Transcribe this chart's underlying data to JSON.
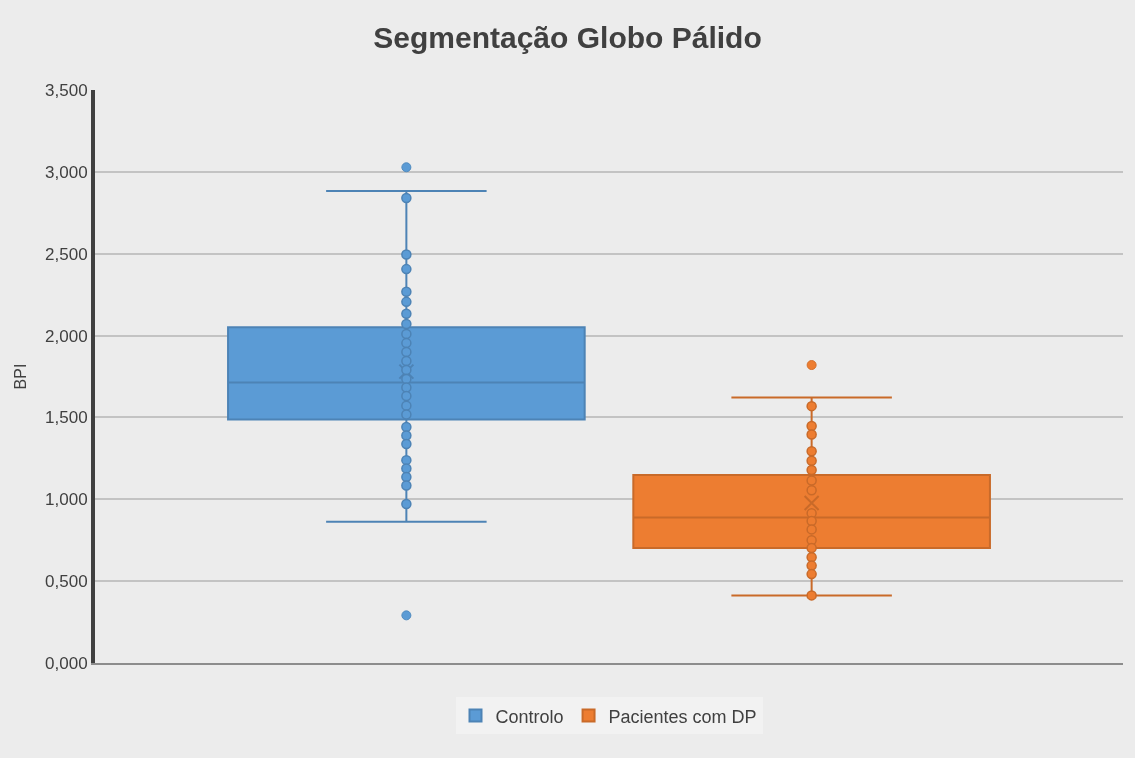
{
  "chart_data": {
    "type": "box",
    "title": "Segmentação Globo Pálido",
    "ylabel": "BPI",
    "categories": [
      null
    ],
    "series": [
      {
        "name": "Controlo",
        "color": "#5b9bd5",
        "boxes": [
          {
            "low": 0.863,
            "q1": 1.487,
            "median": 1.714,
            "q3": 2.051,
            "high": 2.883,
            "mean": 1.78,
            "outliers": [
              3.028,
              0.291
            ]
          }
        ]
      },
      {
        "name": "Pacientes com DP",
        "color": "#ed7d31",
        "boxes": [
          {
            "low": 0.413,
            "q1": 0.702,
            "median": 0.888,
            "q3": 1.148,
            "high": 1.621,
            "mean": 0.977,
            "outliers": [
              1.82
            ]
          }
        ]
      },
      {
        "type": "scatter",
        "color": "#5b9bd5",
        "x": [
          null,
          null,
          null,
          null,
          null,
          null,
          null,
          null,
          null,
          null,
          null,
          null,
          null,
          null,
          null,
          null,
          null,
          null,
          null,
          null,
          null,
          null,
          null,
          null,
          null
        ],
        "values": [
          2.84,
          2.495,
          2.406,
          2.268,
          2.206,
          2.133,
          2.071,
          2.01,
          1.954,
          1.9,
          1.845,
          1.79,
          1.735,
          1.683,
          1.631,
          1.572,
          1.518,
          1.442,
          1.39,
          1.338,
          1.239,
          1.188,
          1.136,
          1.084,
          0.971
        ]
      },
      {
        "type": "scatter",
        "color": "#ed7d31",
        "x": [
          null,
          null,
          null,
          null,
          null,
          null,
          null,
          null,
          null,
          null,
          null,
          null,
          null,
          null,
          null,
          null,
          null
        ],
        "values": [
          1.569,
          1.448,
          1.396,
          1.293,
          1.235,
          1.179,
          1.115,
          1.055,
          0.915,
          0.867,
          0.816,
          0.75,
          0.702,
          0.646,
          0.595,
          0.543,
          0.413
        ]
      }
    ],
    "ylim": [
      0,
      3.5
    ],
    "yticks": [
      {
        "value": 0,
        "label": "0,000"
      },
      {
        "value": 0.5,
        "label": "0,500"
      },
      {
        "value": 1,
        "label": "1,000"
      },
      {
        "value": 1.5,
        "label": "1,500"
      },
      {
        "value": 2,
        "label": "2,000"
      },
      {
        "value": 2.5,
        "label": "2,500"
      },
      {
        "value": 3,
        "label": "3,000"
      },
      {
        "value": 3.5,
        "label": "3,500"
      }
    ],
    "grid": "y",
    "legend": "bottom",
    "marker": "circle"
  }
}
